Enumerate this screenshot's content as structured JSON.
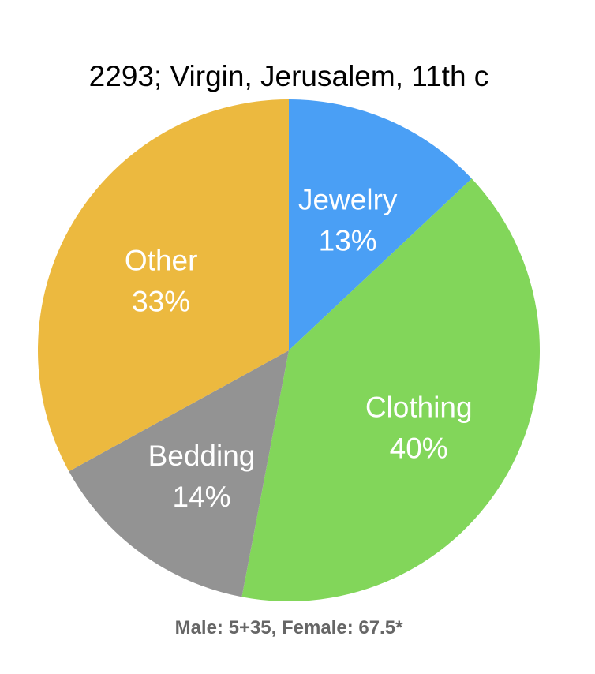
{
  "chart_data": {
    "type": "pie",
    "title": "2293; Virgin, Jerusalem, 11th c",
    "footnote": "Male: 5+35, Female: 67.5*",
    "categories": [
      "Jewelry",
      "Clothing",
      "Bedding",
      "Other"
    ],
    "values": [
      13,
      40,
      14,
      33
    ],
    "labels": [
      "13%",
      "40%",
      "14%",
      "33%"
    ],
    "colors": [
      "#4a9ff5",
      "#82d65a",
      "#939393",
      "#ecb93f"
    ],
    "start_angle_deg": 0,
    "direction": "clockwise",
    "legend": "none"
  }
}
